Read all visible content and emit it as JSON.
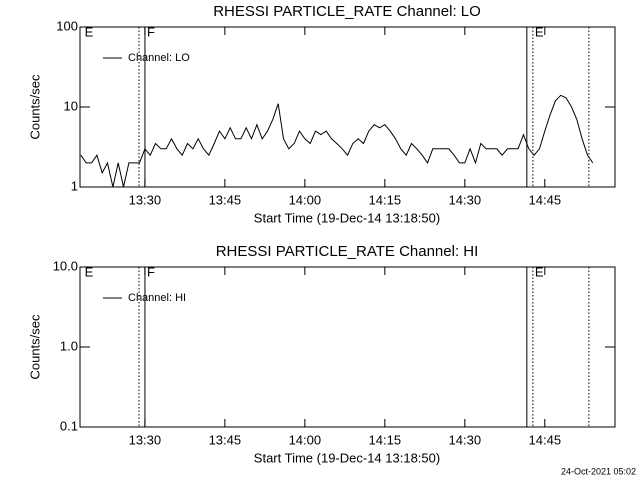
{
  "chart_data": [
    {
      "type": "line",
      "title": "RHESSI PARTICLE_RATE Channel: LO",
      "xlabel": "Start Time (19-Dec-14 13:18:50)",
      "ylabel": "Counts/sec",
      "xlim": [
        "13:17:50",
        "14:58:10"
      ],
      "xticks": [
        "13:30",
        "13:45",
        "14:00",
        "14:15",
        "14:30",
        "14:45"
      ],
      "ylim": [
        1,
        100
      ],
      "yticks": [
        1,
        10,
        100
      ],
      "log_y": true,
      "legend": "top-left",
      "markers": [
        {
          "x": "13:18:20",
          "label": "E",
          "style": "none"
        },
        {
          "x": "13:28:54",
          "style": "dotted"
        },
        {
          "x": "13:30:01",
          "label": "F",
          "style": "solid"
        },
        {
          "x": "14:41:38",
          "style": "solid"
        },
        {
          "x": "14:42:46",
          "label": "E",
          "style": "dotted"
        },
        {
          "x": "14:53:16",
          "style": "dotted"
        }
      ],
      "x": [
        "13:18",
        "13:19",
        "13:20",
        "13:21",
        "13:22",
        "13:23",
        "13:24",
        "13:25",
        "13:26",
        "13:27",
        "13:28",
        "13:29",
        "13:30",
        "13:31",
        "13:32",
        "13:33",
        "13:34",
        "13:35",
        "13:36",
        "13:37",
        "13:38",
        "13:39",
        "13:40",
        "13:41",
        "13:42",
        "13:43",
        "13:44",
        "13:45",
        "13:46",
        "13:47",
        "13:48",
        "13:49",
        "13:50",
        "13:51",
        "13:52",
        "13:53",
        "13:54",
        "13:55",
        "13:56",
        "13:57",
        "13:58",
        "13:59",
        "14:00",
        "14:01",
        "14:02",
        "14:03",
        "14:04",
        "14:05",
        "14:06",
        "14:07",
        "14:08",
        "14:09",
        "14:10",
        "14:11",
        "14:12",
        "14:13",
        "14:14",
        "14:15",
        "14:16",
        "14:17",
        "14:18",
        "14:19",
        "14:20",
        "14:21",
        "14:22",
        "14:23",
        "14:24",
        "14:25",
        "14:26",
        "14:27",
        "14:28",
        "14:29",
        "14:30",
        "14:31",
        "14:32",
        "14:33",
        "14:34",
        "14:35",
        "14:36",
        "14:37",
        "14:38",
        "14:39",
        "14:40",
        "14:41",
        "14:42",
        "14:43",
        "14:44",
        "14:45",
        "14:46",
        "14:47",
        "14:48",
        "14:49",
        "14:50",
        "14:51",
        "14:52",
        "14:53",
        "14:54"
      ],
      "series": [
        {
          "name": "Channel: LO",
          "color": "#000000",
          "values": [
            2.5,
            2,
            2,
            2.5,
            1.5,
            2,
            1,
            2,
            1,
            2,
            2,
            2,
            3,
            2.5,
            3.5,
            3,
            3,
            4,
            3,
            2.5,
            3.5,
            3,
            4,
            3,
            2.5,
            3.5,
            5,
            4,
            5.5,
            4,
            4,
            5.5,
            4,
            6,
            4,
            5,
            7,
            11,
            4,
            3,
            3.5,
            5,
            4,
            3.5,
            5,
            4.5,
            5,
            4,
            3.5,
            3,
            2.5,
            3.5,
            4,
            3.5,
            5,
            6,
            5.5,
            6,
            5,
            4,
            3,
            2.5,
            3.5,
            3,
            2.5,
            2,
            3,
            3,
            3,
            3,
            2.5,
            2,
            2,
            3,
            2,
            3.5,
            3,
            3,
            3,
            2.5,
            3,
            3,
            3,
            4.5,
            3,
            2.5,
            3,
            5,
            8,
            12,
            14,
            13,
            10,
            7,
            4,
            2.5,
            2
          ]
        }
      ]
    },
    {
      "type": "line",
      "title": "RHESSI PARTICLE_RATE Channel: HI",
      "xlabel": "Start Time (19-Dec-14 13:18:50)",
      "ylabel": "Counts/sec",
      "xlim": [
        "13:17:50",
        "14:58:10"
      ],
      "xticks": [
        "13:30",
        "13:45",
        "14:00",
        "14:15",
        "14:30",
        "14:45"
      ],
      "ylim": [
        0.1,
        10
      ],
      "yticks": [
        0.1,
        {
          "value": 1,
          "label": "1.0"
        },
        {
          "value": 10,
          "label": "10.0"
        }
      ],
      "log_y": true,
      "legend": "top-left",
      "markers": [
        {
          "x": "13:18:20",
          "label": "E",
          "style": "none"
        },
        {
          "x": "13:28:54",
          "style": "dotted"
        },
        {
          "x": "13:30:01",
          "label": "F",
          "style": "solid"
        },
        {
          "x": "14:41:38",
          "style": "solid"
        },
        {
          "x": "14:42:46",
          "label": "E",
          "style": "dotted"
        },
        {
          "x": "14:53:16",
          "style": "dotted"
        }
      ],
      "x": [],
      "series": [
        {
          "name": "Channel: HI",
          "color": "#000000",
          "values": []
        }
      ]
    }
  ],
  "footer": "24-Oct-2021 05:02"
}
